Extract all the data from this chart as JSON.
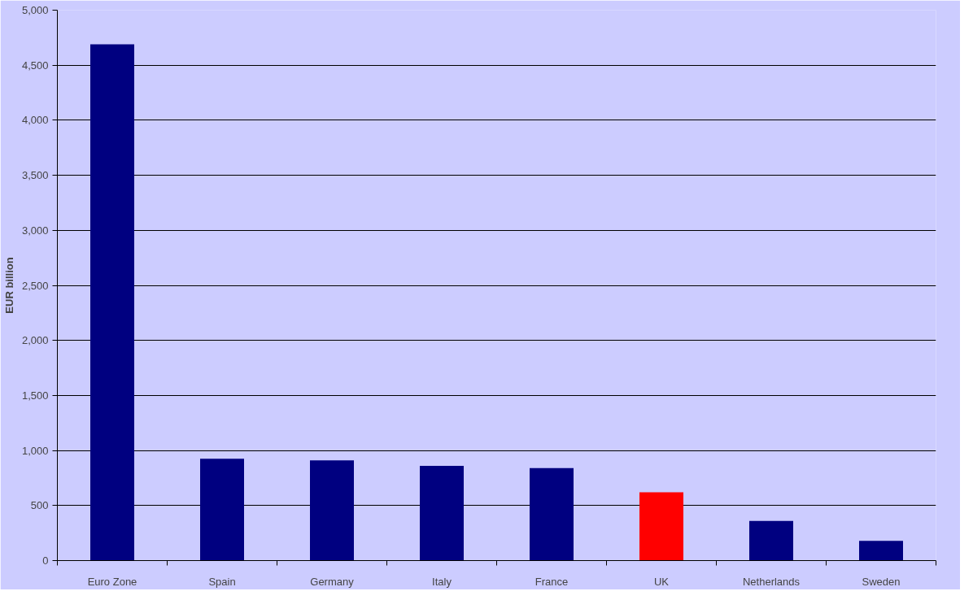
{
  "chart_data": {
    "type": "bar",
    "ylabel": "EUR billion",
    "categories": [
      "Euro Zone",
      "Spain",
      "Germany",
      "Italy",
      "France",
      "UK",
      "Netherlands",
      "Sweden"
    ],
    "values": [
      4690,
      925,
      910,
      860,
      840,
      620,
      360,
      180
    ],
    "colors": [
      "#000080",
      "#000080",
      "#000080",
      "#000080",
      "#000080",
      "#ff0000",
      "#000080",
      "#000080"
    ],
    "ylim": [
      0,
      5000
    ],
    "yticks": [
      0,
      {
        "value": 500,
        "label": "500"
      },
      {
        "value": 1000,
        "label": "1,000"
      },
      {
        "value": 1500,
        "label": "1,500"
      },
      {
        "value": 2000,
        "label": "2,000"
      },
      {
        "value": 2500,
        "label": "2,500"
      },
      {
        "value": 3000,
        "label": "3,000"
      },
      {
        "value": 3500,
        "label": "3,500"
      },
      {
        "value": 4000,
        "label": "4,000"
      },
      {
        "value": 4500,
        "label": "4,500"
      },
      {
        "value": 5000,
        "label": "5,000"
      }
    ],
    "grid": "y"
  }
}
